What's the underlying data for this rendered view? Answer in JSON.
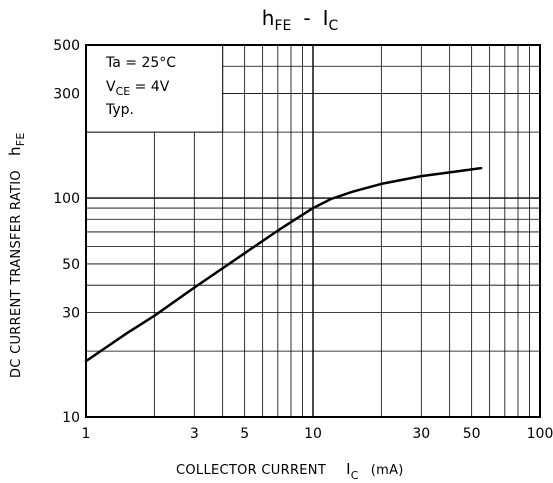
{
  "chart_data": {
    "type": "line",
    "title": {
      "main": "h",
      "main_sub": "FE",
      "sep": "-",
      "var": "I",
      "var_sub": "C"
    },
    "xlabel": {
      "main": "COLLECTOR CURRENT",
      "var": "I",
      "var_sub": "C",
      "unit": "(mA)"
    },
    "ylabel": {
      "main": "DC CURRENT TRANSFER RATIO",
      "var": "h",
      "var_sub": "FE"
    },
    "x_scale": "log",
    "y_scale": "log",
    "xlim": [
      1,
      100
    ],
    "ylim": [
      10,
      500
    ],
    "x_ticks": [
      1,
      3,
      5,
      10,
      30,
      50,
      100
    ],
    "x_tick_labels": [
      "1",
      "3",
      "5",
      "10",
      "30",
      "50",
      "100"
    ],
    "y_ticks": [
      10,
      30,
      50,
      100,
      300,
      500
    ],
    "y_tick_labels": [
      "10",
      "30",
      "50",
      "100",
      "300",
      "500"
    ],
    "grid": true,
    "conditions": [
      {
        "text": "Ta = 25°C"
      },
      {
        "pre": "V",
        "sub": "CE",
        "post": " = 4V"
      },
      {
        "text": "Typ."
      }
    ],
    "series": [
      {
        "x": [
          1,
          1.5,
          2,
          3,
          5,
          7,
          10,
          12,
          15,
          20,
          30,
          40,
          55
        ],
        "y": [
          18,
          24,
          29,
          39,
          56,
          71,
          90,
          99,
          107,
          116,
          126,
          131,
          137
        ]
      }
    ]
  }
}
